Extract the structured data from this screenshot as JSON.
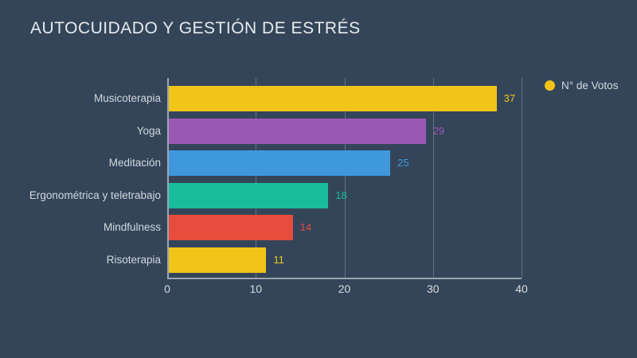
{
  "title": "AUTOCUIDADO Y GESTIÓN DE ESTRÉS",
  "legend": {
    "label": "N° de Votos",
    "marker_color": "#f0c419"
  },
  "colors": {
    "background": "#34455a",
    "title_text": "#e7eaec",
    "axis_text": "#d8dbde",
    "category_text": "#d2d7db",
    "gridline": "#64727f",
    "axis_line": "#9aa6b1"
  },
  "chart_data": {
    "type": "bar",
    "orientation": "horizontal",
    "title": "AUTOCUIDADO Y GESTIÓN DE ESTRÉS",
    "series_name": "N° de Votos",
    "categories": [
      "Musicoterapia",
      "Yoga",
      "Meditación",
      "Ergonométrica y teletrabajo",
      "Mindfulness",
      "Risoterapia"
    ],
    "values": [
      37,
      29,
      25,
      18,
      14,
      11
    ],
    "bar_colors": [
      "#f0c419",
      "#9b59b6",
      "#3e98db",
      "#1abc9c",
      "#e74c3c",
      "#f0c419"
    ],
    "value_labels": true,
    "xlabel": "",
    "ylabel": "",
    "xlim": [
      0,
      40
    ],
    "x_ticks": [
      0,
      10,
      20,
      30,
      40
    ],
    "grid": true,
    "legend_position": "top-right"
  }
}
